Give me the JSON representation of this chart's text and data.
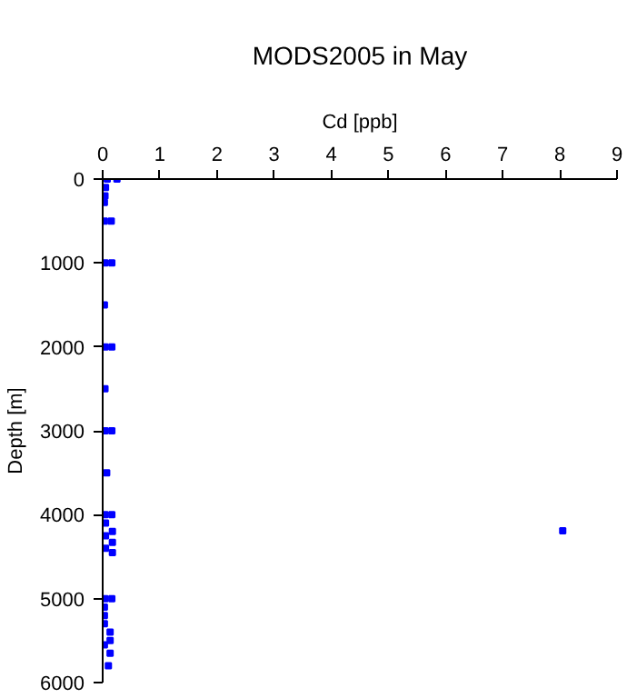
{
  "chart_data": {
    "type": "scatter",
    "title": "MODS2005 in May",
    "xlabel": "Cd [ppb]",
    "ylabel": "Depth [m]",
    "xlim": [
      0,
      9
    ],
    "xticks": [
      0,
      1,
      2,
      3,
      4,
      5,
      6,
      7,
      8,
      9
    ],
    "ylim": [
      6000,
      0
    ],
    "yticks": [
      0,
      1000,
      2000,
      3000,
      4000,
      5000,
      6000
    ],
    "grid": false,
    "marker": "square",
    "series": [
      {
        "color": "#0000ff",
        "x": [
          0.08,
          0.25,
          0.05,
          0.04,
          0.03,
          0.03,
          0.15,
          0.04,
          0.16,
          0.03,
          0.04,
          0.16,
          0.04,
          0.04,
          0.16,
          0.07,
          0.04,
          0.16,
          0.05,
          0.17,
          0.05,
          0.17,
          0.05,
          0.17,
          8.05,
          0.04,
          0.16,
          0.03,
          0.03,
          0.03,
          0.13,
          0.13,
          0.03,
          0.13,
          0.1
        ],
        "values": [
          0,
          0,
          100,
          200,
          280,
          500,
          500,
          1000,
          1000,
          1500,
          2000,
          2000,
          2500,
          3000,
          3000,
          3500,
          4000,
          4000,
          4100,
          4200,
          4250,
          4330,
          4400,
          4450,
          4190,
          5000,
          5000,
          5100,
          5200,
          5300,
          5400,
          5500,
          5550,
          5650,
          5800
        ]
      }
    ]
  }
}
